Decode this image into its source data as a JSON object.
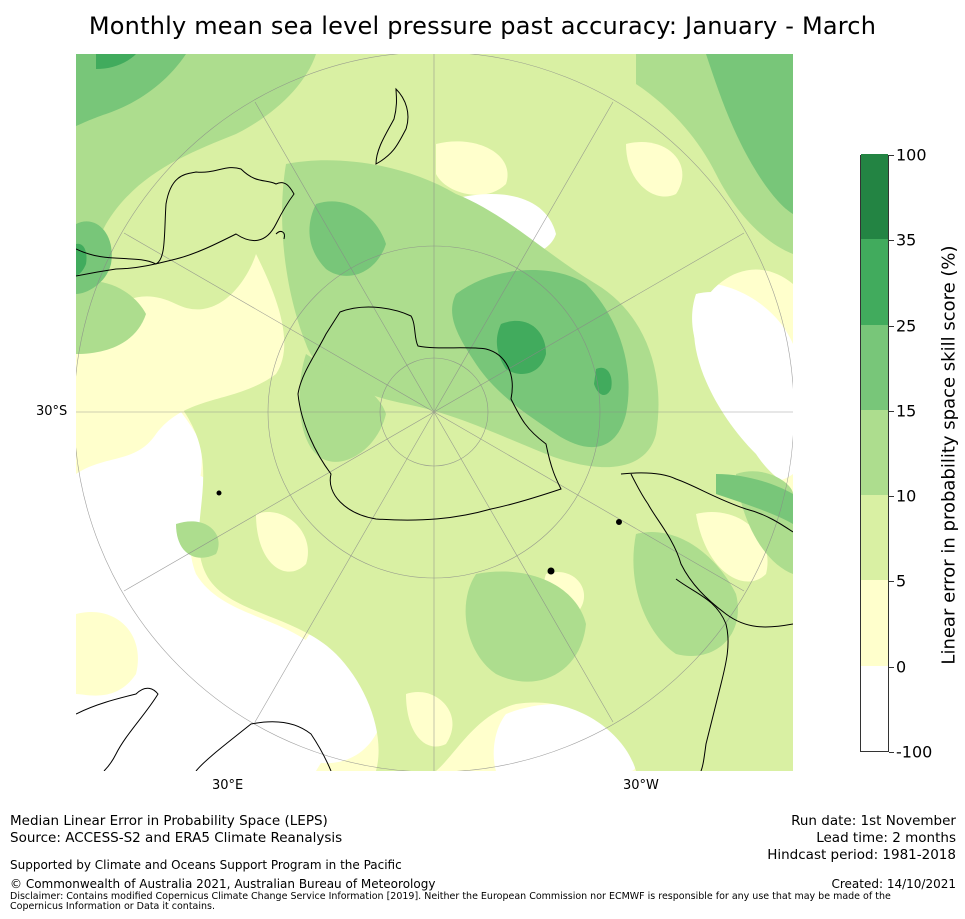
{
  "title": "Monthly mean sea level pressure past accuracy: January - March",
  "map": {
    "projection": "south-polar-stereographic",
    "lat_labels": [
      "30°S"
    ],
    "lon_labels": [
      "30°E",
      "30°W"
    ],
    "land_outline_color": "#000000",
    "graticule_color": "#888888"
  },
  "colorbar": {
    "label": "Linear error in probability space skill score (%)",
    "bounds": [
      "-100",
      "0",
      "5",
      "10",
      "15",
      "25",
      "35",
      "100"
    ],
    "colors": [
      "#ffffff",
      "#ffffcc",
      "#d9f0a3",
      "#addd8e",
      "#78c679",
      "#41ab5d",
      "#238443"
    ]
  },
  "footer": {
    "line1": "Median Linear Error in Probability Space (LEPS)",
    "line2": "Source: ACCESS-S2 and ERA5 Climate Reanalysis",
    "supported": "Supported by Climate and Oceans Support Program in the Pacific",
    "copyright": "© Commonwealth of Australia 2021, Australian Bureau of Meteorology",
    "run_date": "Run date: 1st November",
    "lead_time": "Lead time: 2 months",
    "hindcast": "Hindcast period: 1981-2018",
    "created": "Created: 14/10/2021",
    "disclaimer": "Disclaimer: Contains modified Copernicus Climate Change Service Information [2019]. Neither the European Commission nor ECMWF is responsible for any use that may be made of the Copernicus Information or Data it contains."
  }
}
